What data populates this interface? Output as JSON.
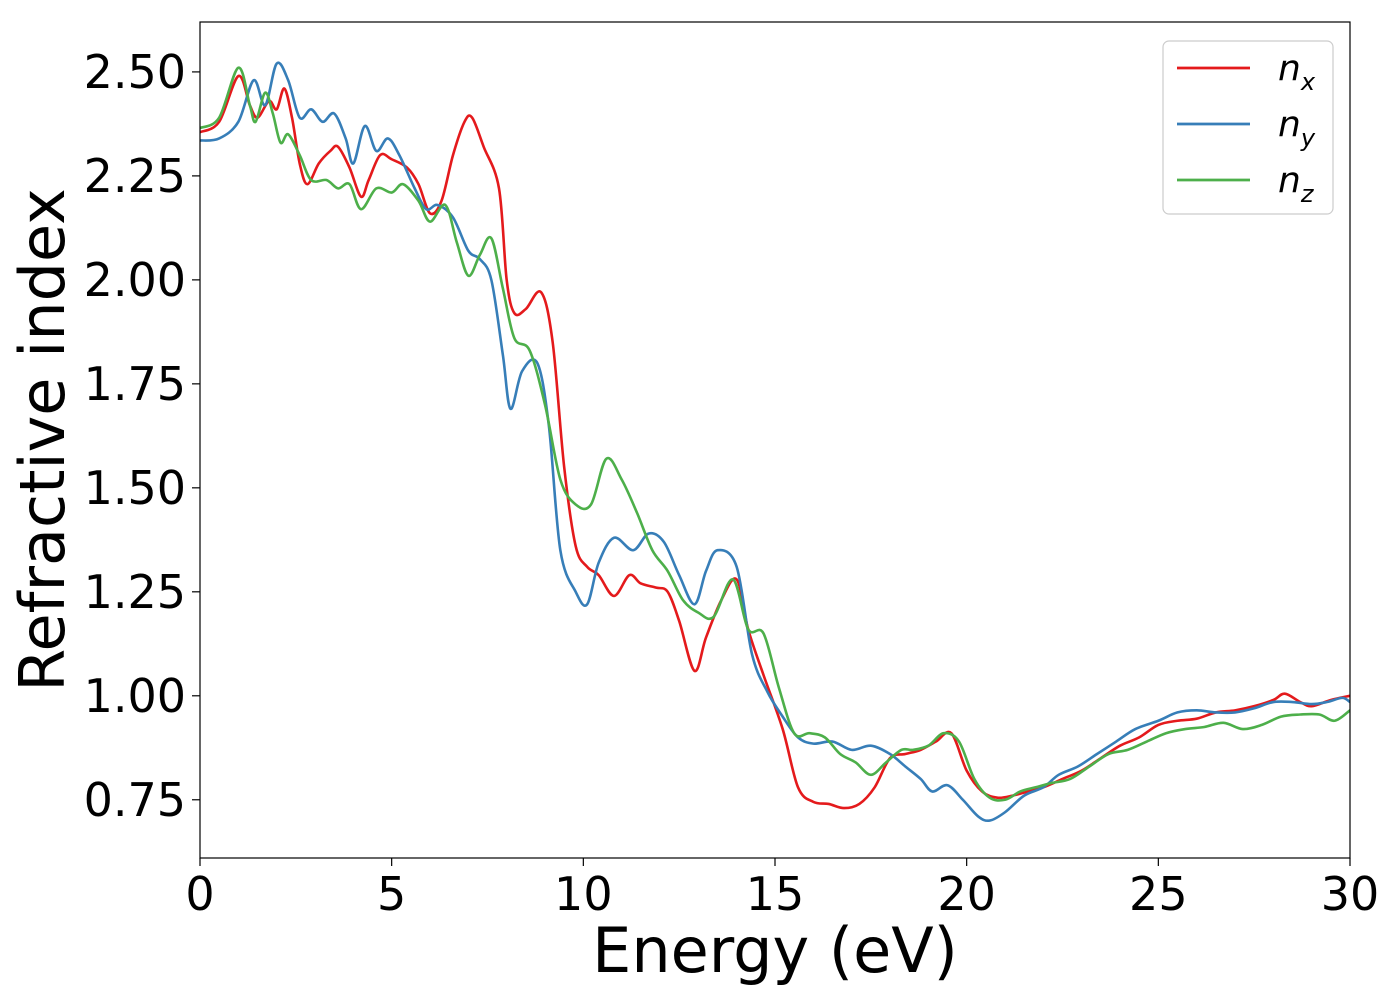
{
  "chart_data": {
    "type": "line",
    "title": "",
    "xlabel": "Energy (eV)",
    "ylabel": "Refractive index",
    "xlim": [
      0,
      30
    ],
    "ylim": [
      0.61,
      2.62
    ],
    "xticks": [
      0,
      5,
      10,
      15,
      20,
      25,
      30
    ],
    "xtick_labels": [
      "0",
      "5",
      "10",
      "15",
      "20",
      "25",
      "30"
    ],
    "yticks": [
      0.75,
      1.0,
      1.25,
      1.5,
      1.75,
      2.0,
      2.25,
      2.5
    ],
    "ytick_labels": [
      "0.75",
      "1.00",
      "1.25",
      "1.50",
      "1.75",
      "2.00",
      "2.25",
      "2.50"
    ],
    "grid": false,
    "legend_position": "top-right",
    "series": [
      {
        "name": "n_x",
        "label_base": "n",
        "label_sub": "x",
        "color": "#e41a1c",
        "points": [
          [
            0,
            2.355
          ],
          [
            0.5,
            2.38
          ],
          [
            1.0,
            2.49
          ],
          [
            1.3,
            2.42
          ],
          [
            1.5,
            2.39
          ],
          [
            1.8,
            2.43
          ],
          [
            2.0,
            2.41
          ],
          [
            2.2,
            2.46
          ],
          [
            2.4,
            2.39
          ],
          [
            2.6,
            2.28
          ],
          [
            2.8,
            2.23
          ],
          [
            3.1,
            2.28
          ],
          [
            3.4,
            2.31
          ],
          [
            3.6,
            2.32
          ],
          [
            3.9,
            2.27
          ],
          [
            4.2,
            2.2
          ],
          [
            4.4,
            2.24
          ],
          [
            4.7,
            2.3
          ],
          [
            5.0,
            2.29
          ],
          [
            5.4,
            2.27
          ],
          [
            5.7,
            2.23
          ],
          [
            6.0,
            2.16
          ],
          [
            6.3,
            2.19
          ],
          [
            6.6,
            2.3
          ],
          [
            6.9,
            2.38
          ],
          [
            7.1,
            2.39
          ],
          [
            7.4,
            2.32
          ],
          [
            7.8,
            2.22
          ],
          [
            8.0,
            2.0
          ],
          [
            8.2,
            1.92
          ],
          [
            8.5,
            1.93
          ],
          [
            8.9,
            1.97
          ],
          [
            9.2,
            1.85
          ],
          [
            9.5,
            1.55
          ],
          [
            9.8,
            1.36
          ],
          [
            10.1,
            1.31
          ],
          [
            10.4,
            1.29
          ],
          [
            10.8,
            1.24
          ],
          [
            11.2,
            1.29
          ],
          [
            11.5,
            1.27
          ],
          [
            11.9,
            1.26
          ],
          [
            12.2,
            1.25
          ],
          [
            12.5,
            1.18
          ],
          [
            12.9,
            1.06
          ],
          [
            13.2,
            1.14
          ],
          [
            13.6,
            1.23
          ],
          [
            14.0,
            1.28
          ],
          [
            14.3,
            1.16
          ],
          [
            14.7,
            1.05
          ],
          [
            15.2,
            0.92
          ],
          [
            15.6,
            0.78
          ],
          [
            16.0,
            0.745
          ],
          [
            16.4,
            0.74
          ],
          [
            16.8,
            0.73
          ],
          [
            17.2,
            0.74
          ],
          [
            17.6,
            0.78
          ],
          [
            18.0,
            0.85
          ],
          [
            18.4,
            0.86
          ],
          [
            18.8,
            0.87
          ],
          [
            19.2,
            0.89
          ],
          [
            19.6,
            0.91
          ],
          [
            20.0,
            0.82
          ],
          [
            20.4,
            0.77
          ],
          [
            20.8,
            0.755
          ],
          [
            21.2,
            0.76
          ],
          [
            21.6,
            0.77
          ],
          [
            22.0,
            0.78
          ],
          [
            22.5,
            0.8
          ],
          [
            23.0,
            0.82
          ],
          [
            23.5,
            0.85
          ],
          [
            24.0,
            0.88
          ],
          [
            24.5,
            0.9
          ],
          [
            25.0,
            0.93
          ],
          [
            25.5,
            0.94
          ],
          [
            26.0,
            0.945
          ],
          [
            26.5,
            0.96
          ],
          [
            27.0,
            0.965
          ],
          [
            27.5,
            0.975
          ],
          [
            28.0,
            0.99
          ],
          [
            28.3,
            1.005
          ],
          [
            28.7,
            0.985
          ],
          [
            29.0,
            0.975
          ],
          [
            29.5,
            0.99
          ],
          [
            30.0,
            1.0
          ]
        ]
      },
      {
        "name": "n_y",
        "label_base": "n",
        "label_sub": "y",
        "color": "#377eb8",
        "points": [
          [
            0,
            2.335
          ],
          [
            0.5,
            2.34
          ],
          [
            1.0,
            2.38
          ],
          [
            1.4,
            2.48
          ],
          [
            1.7,
            2.42
          ],
          [
            2.0,
            2.52
          ],
          [
            2.3,
            2.48
          ],
          [
            2.6,
            2.39
          ],
          [
            2.9,
            2.41
          ],
          [
            3.2,
            2.38
          ],
          [
            3.5,
            2.4
          ],
          [
            3.8,
            2.34
          ],
          [
            4.0,
            2.28
          ],
          [
            4.3,
            2.37
          ],
          [
            4.6,
            2.31
          ],
          [
            4.9,
            2.34
          ],
          [
            5.2,
            2.3
          ],
          [
            5.6,
            2.22
          ],
          [
            5.9,
            2.17
          ],
          [
            6.2,
            2.18
          ],
          [
            6.6,
            2.15
          ],
          [
            7.0,
            2.07
          ],
          [
            7.3,
            2.05
          ],
          [
            7.6,
            2.0
          ],
          [
            7.9,
            1.82
          ],
          [
            8.1,
            1.69
          ],
          [
            8.4,
            1.78
          ],
          [
            8.8,
            1.8
          ],
          [
            9.1,
            1.65
          ],
          [
            9.4,
            1.35
          ],
          [
            9.8,
            1.25
          ],
          [
            10.1,
            1.22
          ],
          [
            10.4,
            1.32
          ],
          [
            10.8,
            1.38
          ],
          [
            11.3,
            1.35
          ],
          [
            11.7,
            1.39
          ],
          [
            12.1,
            1.37
          ],
          [
            12.5,
            1.29
          ],
          [
            12.9,
            1.22
          ],
          [
            13.2,
            1.3
          ],
          [
            13.5,
            1.35
          ],
          [
            14.0,
            1.31
          ],
          [
            14.4,
            1.1
          ],
          [
            14.8,
            1.01
          ],
          [
            15.2,
            0.95
          ],
          [
            15.6,
            0.9
          ],
          [
            16.0,
            0.885
          ],
          [
            16.5,
            0.89
          ],
          [
            17.0,
            0.87
          ],
          [
            17.5,
            0.88
          ],
          [
            18.0,
            0.86
          ],
          [
            18.4,
            0.83
          ],
          [
            18.8,
            0.8
          ],
          [
            19.1,
            0.77
          ],
          [
            19.5,
            0.785
          ],
          [
            19.9,
            0.75
          ],
          [
            20.3,
            0.71
          ],
          [
            20.6,
            0.7
          ],
          [
            21.0,
            0.72
          ],
          [
            21.5,
            0.76
          ],
          [
            22.0,
            0.78
          ],
          [
            22.4,
            0.81
          ],
          [
            22.9,
            0.83
          ],
          [
            23.4,
            0.86
          ],
          [
            23.9,
            0.89
          ],
          [
            24.4,
            0.92
          ],
          [
            25.0,
            0.94
          ],
          [
            25.5,
            0.96
          ],
          [
            26.0,
            0.965
          ],
          [
            26.5,
            0.96
          ],
          [
            27.0,
            0.96
          ],
          [
            27.5,
            0.97
          ],
          [
            28.0,
            0.985
          ],
          [
            28.5,
            0.985
          ],
          [
            29.0,
            0.98
          ],
          [
            29.4,
            0.985
          ],
          [
            29.8,
            0.995
          ],
          [
            30.0,
            0.985
          ]
        ]
      },
      {
        "name": "n_z",
        "label_base": "n",
        "label_sub": "z",
        "color": "#4daf4a",
        "points": [
          [
            0,
            2.365
          ],
          [
            0.5,
            2.39
          ],
          [
            1.0,
            2.51
          ],
          [
            1.3,
            2.42
          ],
          [
            1.45,
            2.38
          ],
          [
            1.7,
            2.45
          ],
          [
            1.9,
            2.4
          ],
          [
            2.1,
            2.33
          ],
          [
            2.3,
            2.35
          ],
          [
            2.6,
            2.3
          ],
          [
            2.9,
            2.24
          ],
          [
            3.3,
            2.24
          ],
          [
            3.6,
            2.22
          ],
          [
            3.9,
            2.23
          ],
          [
            4.2,
            2.17
          ],
          [
            4.6,
            2.22
          ],
          [
            5.0,
            2.21
          ],
          [
            5.3,
            2.23
          ],
          [
            5.7,
            2.19
          ],
          [
            6.0,
            2.14
          ],
          [
            6.4,
            2.18
          ],
          [
            6.7,
            2.09
          ],
          [
            7.0,
            2.01
          ],
          [
            7.3,
            2.06
          ],
          [
            7.6,
            2.1
          ],
          [
            7.9,
            1.98
          ],
          [
            8.2,
            1.86
          ],
          [
            8.6,
            1.83
          ],
          [
            9.0,
            1.7
          ],
          [
            9.4,
            1.52
          ],
          [
            9.8,
            1.46
          ],
          [
            10.2,
            1.46
          ],
          [
            10.6,
            1.57
          ],
          [
            11.0,
            1.52
          ],
          [
            11.4,
            1.44
          ],
          [
            11.8,
            1.35
          ],
          [
            12.2,
            1.3
          ],
          [
            12.6,
            1.23
          ],
          [
            13.0,
            1.2
          ],
          [
            13.4,
            1.19
          ],
          [
            13.9,
            1.28
          ],
          [
            14.3,
            1.16
          ],
          [
            14.7,
            1.15
          ],
          [
            15.1,
            1.02
          ],
          [
            15.5,
            0.91
          ],
          [
            15.9,
            0.91
          ],
          [
            16.3,
            0.9
          ],
          [
            16.7,
            0.86
          ],
          [
            17.1,
            0.84
          ],
          [
            17.5,
            0.81
          ],
          [
            17.9,
            0.84
          ],
          [
            18.3,
            0.87
          ],
          [
            18.6,
            0.87
          ],
          [
            19.0,
            0.88
          ],
          [
            19.4,
            0.91
          ],
          [
            19.8,
            0.89
          ],
          [
            20.2,
            0.8
          ],
          [
            20.6,
            0.755
          ],
          [
            21.0,
            0.75
          ],
          [
            21.4,
            0.77
          ],
          [
            21.8,
            0.78
          ],
          [
            22.2,
            0.79
          ],
          [
            22.7,
            0.8
          ],
          [
            23.2,
            0.83
          ],
          [
            23.7,
            0.86
          ],
          [
            24.2,
            0.87
          ],
          [
            24.7,
            0.89
          ],
          [
            25.2,
            0.91
          ],
          [
            25.7,
            0.92
          ],
          [
            26.2,
            0.925
          ],
          [
            26.7,
            0.935
          ],
          [
            27.2,
            0.92
          ],
          [
            27.7,
            0.93
          ],
          [
            28.2,
            0.95
          ],
          [
            28.7,
            0.955
          ],
          [
            29.2,
            0.955
          ],
          [
            29.6,
            0.94
          ],
          [
            30.0,
            0.965
          ]
        ]
      }
    ]
  }
}
